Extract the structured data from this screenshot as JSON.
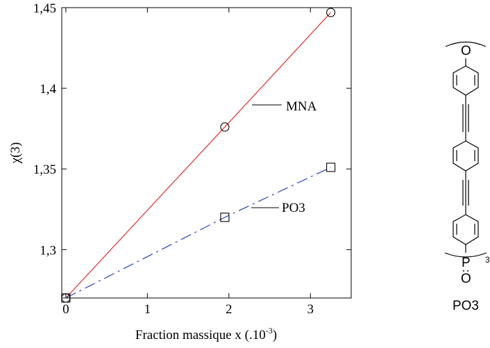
{
  "chart_data": {
    "type": "line",
    "xlabel": "Fraction massique x (.10",
    "xlabel_exp": "-3",
    "xlabel_close": ")",
    "ylabel": "χ(3)",
    "xlim": [
      -0.05,
      3.5
    ],
    "ylim": [
      1.27,
      1.45
    ],
    "x_ticks": [
      {
        "value": 0,
        "label": "0"
      },
      {
        "value": 1,
        "label": "1"
      },
      {
        "value": 2,
        "label": "2"
      },
      {
        "value": 3,
        "label": "3"
      }
    ],
    "y_ticks": [
      {
        "value": 1.3,
        "label": "1,3"
      },
      {
        "value": 1.35,
        "label": "1,35"
      },
      {
        "value": 1.4,
        "label": "1,4"
      },
      {
        "value": 1.45,
        "label": "1,45"
      }
    ],
    "series": [
      {
        "name": "MNA",
        "marker": "circle",
        "line_style": "solid",
        "color": "#d93030",
        "x": [
          0,
          1.95,
          3.25
        ],
        "y": [
          1.27,
          1.376,
          1.447
        ]
      },
      {
        "name": "PO3",
        "marker": "square",
        "line_style": "dashdot",
        "color": "#2b3fbf",
        "x": [
          0,
          1.95,
          3.25
        ],
        "y": [
          1.27,
          1.32,
          1.351
        ]
      }
    ],
    "grid": false
  },
  "molecule": {
    "atom_top": "O",
    "atom_p": "P",
    "atom_o_bottom": "O",
    "repeat_index": "3",
    "caption": "PO3"
  }
}
